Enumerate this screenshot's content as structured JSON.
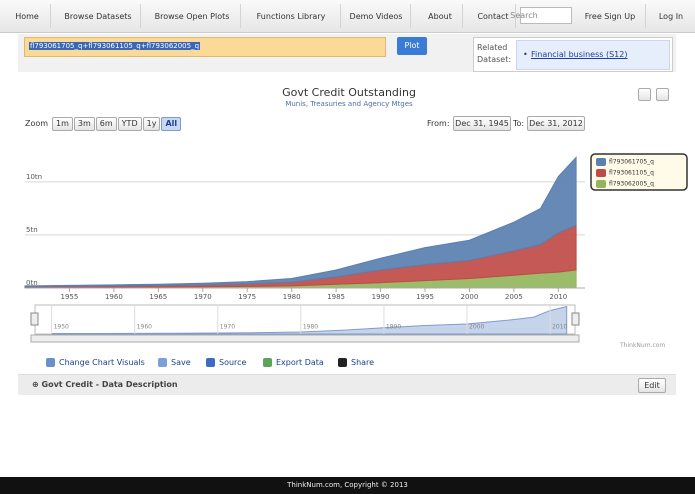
{
  "nav": {
    "items": [
      "Home",
      "Browse Datasets",
      "Browse Open Plots",
      "Functions Library",
      "Demo Videos",
      "About",
      "Contact"
    ],
    "search_placeholder": "Search",
    "right_items": [
      "Free Sign Up",
      "Log In"
    ]
  },
  "query": {
    "text": "fl793061705_q+fl793061105_q+fl793062005_q",
    "button": "Plot"
  },
  "related": {
    "label": "Related Dataset:",
    "link": "Financial business (S12)"
  },
  "zoom": {
    "label": "Zoom",
    "buttons": [
      "1m",
      "3m",
      "6m",
      "YTD",
      "1y",
      "All"
    ],
    "selected": 5
  },
  "range": {
    "from_label": "From:",
    "from": "Dec 31, 1945",
    "to_label": "To:",
    "to": "Dec 31, 2012"
  },
  "chart_data": {
    "type": "area",
    "stacked": true,
    "title": "Govt Credit Outstanding",
    "subtitle": "Munis, Treasuries and Agency Mtges",
    "x": [
      1950,
      1955,
      1960,
      1965,
      1970,
      1975,
      1980,
      1985,
      1990,
      1995,
      2000,
      2005,
      2008,
      2010,
      2012
    ],
    "series": [
      {
        "name": "fl793061705_q",
        "color": "#5a7fb0",
        "values": [
          0.07,
          0.09,
          0.1,
          0.12,
          0.15,
          0.2,
          0.35,
          0.65,
          1.1,
          1.6,
          1.9,
          2.7,
          3.4,
          5.3,
          6.4
        ]
      },
      {
        "name": "fl793061105_q",
        "color": "#bf4b47",
        "values": [
          0.08,
          0.1,
          0.12,
          0.13,
          0.18,
          0.25,
          0.35,
          0.7,
          1.2,
          1.5,
          1.7,
          2.3,
          2.7,
          3.7,
          4.2
        ]
      },
      {
        "name": "fl793062005_q",
        "color": "#93b65c",
        "values": [
          0.05,
          0.06,
          0.08,
          0.1,
          0.12,
          0.15,
          0.2,
          0.35,
          0.5,
          0.7,
          0.9,
          1.2,
          1.4,
          1.5,
          1.7
        ]
      }
    ],
    "xlim": [
      1950,
      2013
    ],
    "xticks": [
      1955,
      1960,
      1965,
      1970,
      1975,
      1980,
      1985,
      1990,
      1995,
      2000,
      2005,
      2010
    ],
    "ylim": [
      0,
      13
    ],
    "yticks": [
      {
        "value": 0,
        "label": "0tn"
      },
      {
        "value": 5,
        "label": "5tn"
      },
      {
        "value": 10,
        "label": "10tn"
      }
    ],
    "grid": true,
    "legend": "upper right"
  },
  "navigator": {
    "xlim": [
      1948,
      2013
    ],
    "ticks": [
      1950,
      1960,
      1970,
      1980,
      1990,
      2000,
      2010
    ]
  },
  "credit": "ThinkNum.com",
  "toolbar": [
    "Change Chart Visuals",
    "Save",
    "Source",
    "Export Data",
    "Share"
  ],
  "description": {
    "title": "Govt Credit - Data Description",
    "button": "Edit"
  },
  "footer": "ThinkNum.com, Copyright © 2013"
}
